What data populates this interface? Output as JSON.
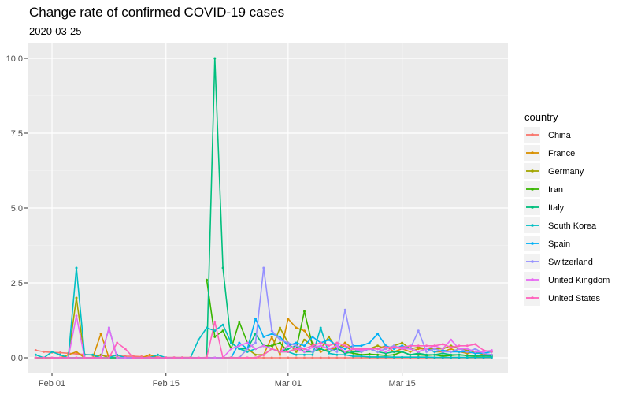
{
  "chart_data": {
    "type": "line",
    "title": "Change rate of confirmed COVID-19 cases",
    "subtitle": "2020-03-25",
    "xlabel": "",
    "ylabel": "",
    "x_start": "2020-01-30",
    "x_end": "2020-03-26",
    "xlim": [
      "2020-01-29",
      "2020-03-28"
    ],
    "ylim": [
      -0.5,
      10.5
    ],
    "y_ticks": [
      0,
      2.5,
      5,
      7.5,
      10
    ],
    "y_tick_labels": [
      "0.0",
      "2.5",
      "5.0",
      "7.5",
      "10.0"
    ],
    "x_ticks": [
      "2020-02-01",
      "2020-02-15",
      "2020-03-01",
      "2020-03-15"
    ],
    "x_tick_labels": [
      "Feb 01",
      "Feb 15",
      "Mar 01",
      "Mar 15"
    ],
    "grid": true,
    "legend_title": "country",
    "legend_position": "right",
    "series": [
      {
        "name": "China",
        "color": "#F8766D",
        "values": [
          0.25,
          0.2,
          0.18,
          0.17,
          0.15,
          0.13,
          0.11,
          0.09,
          0.08,
          0.07,
          0.06,
          0.05,
          0.05,
          0.04,
          0.03,
          0.02,
          0.01,
          0.01,
          0.01,
          0.01,
          0.0,
          0.01,
          0.0,
          0.0,
          0.01,
          0.0,
          0.0,
          0.0,
          0.0,
          0.0,
          0.0,
          0.0,
          0.0,
          0.0,
          0.0,
          0.0,
          0.0,
          0.0,
          0.0,
          0.0,
          0.0,
          0.0,
          0.0,
          0.0,
          0.0,
          0.0,
          0.0,
          0.0,
          0.0,
          0.0,
          0.0,
          0.0,
          0.0,
          0.0,
          0.0,
          0.0,
          0.0
        ]
      },
      {
        "name": "France",
        "color": "#D89000",
        "values": [
          0,
          0,
          0,
          0,
          0.1,
          0.2,
          0,
          0,
          0.8,
          0,
          0,
          0,
          0,
          0,
          0.1,
          0,
          0,
          0,
          0,
          0,
          0,
          0,
          0,
          0,
          0,
          0,
          0,
          0,
          0.1,
          0.7,
          0.1,
          1.3,
          1.0,
          0.9,
          0.5,
          0.2,
          0.3,
          0.3,
          0.5,
          0.3,
          0.2,
          0.3,
          0.3,
          0.4,
          0.2,
          0.3,
          0.2,
          0.3,
          0.3,
          0.2,
          0.2,
          0.3,
          0.2,
          0.15,
          0.2,
          0.1,
          0.1
        ]
      },
      {
        "name": "Germany",
        "color": "#A3A500",
        "values": [
          0,
          0,
          0,
          0,
          0,
          2.0,
          0,
          0,
          0.1,
          0,
          0,
          0,
          0,
          0,
          0,
          0,
          0,
          0,
          0,
          0,
          0,
          0,
          0,
          0,
          0,
          0,
          0.3,
          0.1,
          0.1,
          0.3,
          1.0,
          0.5,
          0.2,
          0.6,
          0.4,
          0.3,
          0.7,
          0.3,
          0.4,
          0.2,
          0.3,
          0.3,
          0.4,
          0.3,
          0.4,
          0.5,
          0.3,
          0.35,
          0.3,
          0.3,
          0.3,
          0.4,
          0.3,
          0.25,
          0.2,
          0.15,
          0.1
        ]
      },
      {
        "name": "Iran",
        "color": "#39B600",
        "values": [
          null,
          null,
          null,
          null,
          null,
          null,
          null,
          null,
          null,
          null,
          null,
          null,
          null,
          null,
          null,
          null,
          null,
          null,
          null,
          null,
          null,
          2.6,
          0.7,
          0.9,
          0.3,
          1.2,
          0.5,
          0.3,
          0.4,
          0.4,
          0.5,
          0.2,
          0.3,
          1.55,
          0.4,
          0.3,
          0.2,
          0.3,
          0.2,
          0.15,
          0.1,
          0.12,
          0.1,
          0.08,
          0.1,
          0.2,
          0.1,
          0.1,
          0.08,
          0.1,
          0.05,
          0.08,
          0.1,
          0.07,
          0.05,
          0.06,
          0.05
        ]
      },
      {
        "name": "Italy",
        "color": "#00BF7D",
        "values": [
          0,
          0,
          0,
          0,
          0,
          0,
          0,
          0,
          0,
          0,
          0,
          0,
          0,
          0,
          0,
          0,
          0,
          0,
          0,
          0,
          0,
          0,
          10.0,
          3.0,
          0.5,
          0.3,
          0.3,
          0.8,
          0.4,
          0.3,
          0.2,
          0.3,
          0.4,
          0.2,
          0.2,
          0.3,
          0.2,
          0.3,
          0.15,
          0.2,
          0.2,
          0.3,
          0.2,
          0.15,
          0.2,
          0.2,
          0.1,
          0.15,
          0.1,
          0.1,
          0.15,
          0.1,
          0.1,
          0.08,
          0.08,
          0.07,
          0.06
        ]
      },
      {
        "name": "South Korea",
        "color": "#00BFC4",
        "values": [
          0.1,
          0.0,
          0.2,
          0.1,
          0.0,
          3.0,
          0.1,
          0.1,
          0.0,
          0.0,
          0.1,
          0.0,
          0.0,
          0.0,
          0.0,
          0.1,
          0.0,
          0.0,
          0.0,
          0.0,
          0.6,
          1.0,
          0.9,
          1.1,
          0.5,
          0.3,
          0.2,
          0.3,
          0.4,
          0.3,
          0.2,
          0.2,
          0.1,
          0.1,
          0.1,
          1.0,
          0.15,
          0.1,
          0.1,
          0.05,
          0.05,
          0.03,
          0.03,
          0.03,
          0.02,
          0.02,
          0.02,
          0.02,
          0.02,
          0.01,
          0.01,
          0.01,
          0.01,
          0.01,
          0.01,
          0.01,
          0.01
        ]
      },
      {
        "name": "Spain",
        "color": "#00B0F6",
        "values": [
          null,
          null,
          0,
          0,
          0,
          0,
          0,
          0,
          0,
          1.0,
          0,
          0,
          0,
          0,
          0,
          0,
          0,
          0,
          0,
          0,
          0,
          0,
          0,
          0,
          0,
          0.5,
          0.3,
          1.3,
          0.7,
          0.8,
          0.7,
          0.4,
          0.5,
          0.4,
          0.7,
          0.5,
          0.6,
          0.4,
          0.3,
          0.4,
          0.4,
          0.5,
          0.8,
          0.4,
          0.3,
          0.4,
          0.3,
          0.2,
          0.3,
          0.2,
          0.25,
          0.2,
          0.2,
          0.2,
          0.15,
          0.15,
          0.2
        ]
      },
      {
        "name": "Switzerland",
        "color": "#9590FF",
        "values": [
          null,
          null,
          null,
          null,
          null,
          null,
          null,
          null,
          null,
          null,
          null,
          null,
          null,
          null,
          null,
          null,
          null,
          null,
          null,
          null,
          null,
          null,
          null,
          null,
          0,
          0,
          0.3,
          0.5,
          3.0,
          0.9,
          0.6,
          0.5,
          0.4,
          0.3,
          0.2,
          0.4,
          0.3,
          0.2,
          1.6,
          0.3,
          0.2,
          0.3,
          0.2,
          0.3,
          0.4,
          0.3,
          0.3,
          0.9,
          0.2,
          0.3,
          0.2,
          0.2,
          0.3,
          0.2,
          0.3,
          0.15,
          0.1
        ]
      },
      {
        "name": "United Kingdom",
        "color": "#E76BF3",
        "values": [
          null,
          null,
          0,
          0,
          0,
          1.4,
          0,
          0,
          0,
          1.0,
          0,
          0,
          0,
          0,
          0,
          0,
          0,
          0,
          0,
          0,
          0,
          0,
          0,
          0,
          0.3,
          0.4,
          0.5,
          0.3,
          0.4,
          0.3,
          0.2,
          0.4,
          0.3,
          0.2,
          0.35,
          0.4,
          0.3,
          0.4,
          0.2,
          0.3,
          0.25,
          0.3,
          0.3,
          0.2,
          0.35,
          0.3,
          0.3,
          0.2,
          0.3,
          0.4,
          0.3,
          0.6,
          0.3,
          0.3,
          0.2,
          0.2,
          0.25
        ]
      },
      {
        "name": "United States",
        "color": "#FF62BC",
        "values": [
          0,
          0,
          0,
          0,
          0,
          0,
          0,
          0,
          0,
          0,
          0.5,
          0.3,
          0,
          0,
          0,
          0,
          0,
          0,
          0,
          0,
          0,
          0,
          1.2,
          0,
          0,
          0,
          0,
          0,
          0.1,
          0.3,
          0.2,
          0.2,
          0.3,
          0.3,
          0.4,
          0.5,
          0.4,
          0.5,
          0.4,
          0.3,
          0.3,
          0.3,
          0.3,
          0.35,
          0.35,
          0.35,
          0.4,
          0.4,
          0.4,
          0.4,
          0.45,
          0.35,
          0.4,
          0.4,
          0.45,
          0.25,
          0.2
        ]
      }
    ]
  }
}
